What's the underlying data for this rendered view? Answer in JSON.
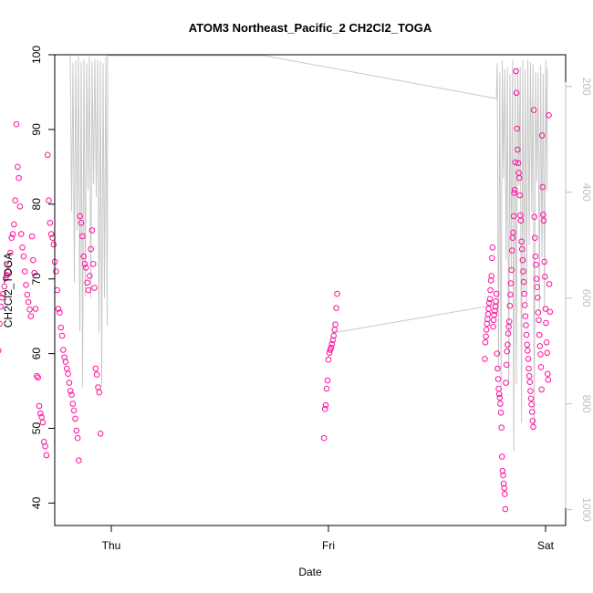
{
  "chart_data": {
    "type": "scatter",
    "title": "ATOM3 Northeast_Pacific_2 CH2Cl2_TOGA",
    "xlabel": "Date",
    "ylabel": "CH2Cl2_TOGA",
    "x_ticks": [
      "Thu",
      "Fri",
      "Sat"
    ],
    "y_ticks": [
      "40",
      "50",
      "60",
      "70",
      "80",
      "90",
      "100"
    ],
    "ylim": [
      37,
      100
    ],
    "y2_ticks": [
      "200",
      "400",
      "600",
      "800",
      "1000"
    ],
    "y2lim": [
      1030,
      140
    ],
    "colors": {
      "points": "#ff0f9e",
      "altitude": "#c8c8c8",
      "axis": "#000000",
      "axis2": "#bfbfbf"
    },
    "series": [
      {
        "marker": "circle",
        "groups": [
          {
            "day": "Thu",
            "x_range": [
              -0.52,
              -0.05
            ],
            "values": [
              60.4,
              64.0,
              66.3,
              67.5,
              68.0,
              69.0,
              70.1,
              70.5,
              71.0,
              72.0,
              73.5,
              75.5,
              76.0,
              77.3,
              80.5,
              90.7,
              85.0,
              83.5,
              79.7,
              76.0,
              74.2,
              73.0,
              71.0,
              69.2,
              67.9,
              66.9,
              65.9,
              65.0,
              75.7,
              72.5,
              70.8,
              66.0,
              57.0,
              56.8,
              53.0,
              52.0,
              51.5,
              50.8,
              48.2,
              47.6,
              46.4,
              86.6,
              80.5,
              77.5,
              76.0,
              75.5,
              74.6,
              72.3,
              71.0,
              68.5,
              66.0,
              65.5,
              63.5,
              62.4,
              60.5,
              59.5,
              58.9,
              58.0,
              57.3,
              56.1,
              55.0,
              54.5,
              53.3,
              52.4,
              51.3,
              49.7,
              48.7,
              45.7,
              78.4,
              77.5,
              75.7,
              73.0,
              72.0,
              71.5,
              69.5,
              68.5,
              70.4,
              74.0,
              76.5,
              72.0,
              68.8,
              58.0,
              57.2,
              55.5,
              54.8,
              49.3
            ]
          },
          {
            "day": "Fri",
            "x_range": [
              -0.02,
              0.04
            ],
            "values": [
              48.7,
              52.6,
              53.1,
              55.3,
              56.4,
              59.2,
              60.1,
              60.5,
              60.8,
              61.3,
              61.8,
              62.4,
              63.2,
              63.9,
              66.1,
              68.0
            ]
          },
          {
            "day": "Sat",
            "x_range": [
              -0.28,
              0.02
            ],
            "values": [
              59.3,
              61.5,
              62.3,
              63.2,
              64.0,
              64.6,
              65.3,
              66.0,
              66.8,
              67.3,
              68.5,
              69.8,
              70.4,
              72.8,
              74.2,
              63.6,
              64.5,
              65.2,
              65.7,
              66.3,
              67.0,
              68.0,
              60.0,
              58.0,
              56.6,
              55.3,
              54.6,
              54.1,
              53.3,
              52.1,
              50.1,
              46.2,
              44.3,
              43.7,
              42.6,
              42.0,
              41.2,
              39.2,
              56.1,
              58.5,
              60.3,
              61.2,
              62.7,
              63.6,
              64.3,
              66.4,
              67.9,
              69.4,
              71.2,
              73.8,
              75.5,
              76.2,
              78.4,
              81.5,
              81.9,
              85.6,
              97.8,
              94.9,
              90.1,
              87.3,
              85.5,
              84.2,
              83.5,
              81.2,
              78.5,
              77.8,
              75.0,
              74.0,
              72.5,
              71.0,
              69.6,
              68.0,
              66.5,
              65.0,
              63.8,
              62.5,
              61.2,
              60.4,
              59.3,
              58.0,
              57.0,
              56.2,
              55.0,
              54.0,
              53.2,
              52.2,
              51.0,
              50.2,
              92.6,
              78.3,
              75.5,
              73.0,
              71.9,
              70.0,
              68.9,
              67.5,
              65.5,
              64.5,
              62.5,
              61.0,
              59.9,
              58.2,
              55.2,
              89.2,
              82.3,
              78.6,
              77.8,
              72.3,
              70.3,
              66.0,
              64.1,
              61.5,
              60.1,
              57.3,
              56.5,
              91.9,
              69.3,
              65.6
            ]
          }
        ]
      }
    ]
  }
}
